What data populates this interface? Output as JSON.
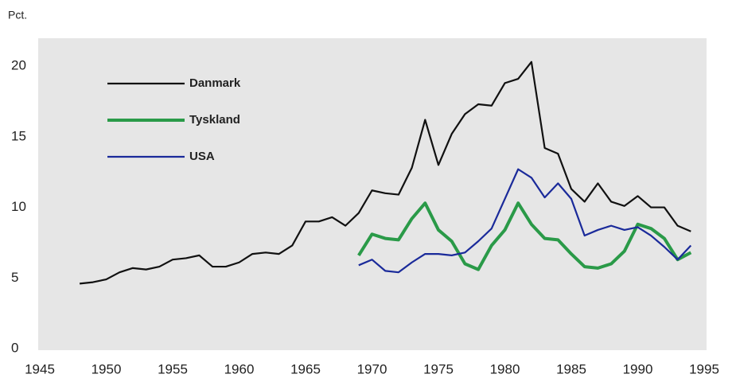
{
  "chart_data": {
    "type": "line",
    "y_label": "Pct.",
    "x": [
      1948,
      1949,
      1950,
      1951,
      1952,
      1953,
      1954,
      1955,
      1956,
      1957,
      1958,
      1959,
      1960,
      1961,
      1962,
      1963,
      1964,
      1965,
      1966,
      1967,
      1968,
      1969,
      1970,
      1971,
      1972,
      1973,
      1974,
      1975,
      1976,
      1977,
      1978,
      1979,
      1980,
      1981,
      1982,
      1983,
      1984,
      1985,
      1986,
      1987,
      1988,
      1989,
      1990,
      1991,
      1992,
      1993,
      1994
    ],
    "series": [
      {
        "name": "Danmark",
        "color": "#111111",
        "width": 2.2,
        "values": [
          4.6,
          4.7,
          4.9,
          5.4,
          5.7,
          5.6,
          5.8,
          6.3,
          6.4,
          6.6,
          5.8,
          5.8,
          6.1,
          6.7,
          6.8,
          6.7,
          7.3,
          9.0,
          9.0,
          9.3,
          8.7,
          9.6,
          11.2,
          11.0,
          10.9,
          12.8,
          16.2,
          13.0,
          15.2,
          16.6,
          17.3,
          17.2,
          18.8,
          19.1,
          20.3,
          14.2,
          13.8,
          11.3,
          10.4,
          11.7,
          10.4,
          10.1,
          10.8,
          10.0,
          10.0,
          8.7,
          8.3
        ]
      },
      {
        "name": "Tyskland",
        "color": "#2a9a48",
        "width": 4,
        "values": [
          null,
          null,
          null,
          null,
          null,
          null,
          null,
          null,
          null,
          null,
          null,
          null,
          null,
          null,
          null,
          null,
          null,
          null,
          null,
          null,
          null,
          6.6,
          8.1,
          7.8,
          7.7,
          9.2,
          10.3,
          8.4,
          7.6,
          6.0,
          5.6,
          7.3,
          8.4,
          10.3,
          8.8,
          7.8,
          7.7,
          6.7,
          5.8,
          5.7,
          6.0,
          6.9,
          8.8,
          8.5,
          7.8,
          6.3,
          6.8
        ]
      },
      {
        "name": "USA",
        "color": "#1a2a9a",
        "width": 2.2,
        "values": [
          null,
          null,
          null,
          null,
          null,
          null,
          null,
          null,
          null,
          null,
          null,
          null,
          null,
          null,
          null,
          null,
          null,
          null,
          null,
          null,
          null,
          5.9,
          6.3,
          5.5,
          5.4,
          6.1,
          6.7,
          6.7,
          6.6,
          6.8,
          7.6,
          8.5,
          10.6,
          12.7,
          12.1,
          10.7,
          11.7,
          10.6,
          8.0,
          8.4,
          8.7,
          8.4,
          8.6,
          8.0,
          7.2,
          6.3,
          7.3
        ]
      }
    ],
    "xlim": [
      1945,
      1995
    ],
    "xticks": [
      1945,
      1950,
      1955,
      1960,
      1965,
      1970,
      1975,
      1980,
      1985,
      1990,
      1995
    ],
    "ylim": [
      0,
      22
    ],
    "yticks": [
      0,
      5,
      10,
      15,
      20
    ],
    "legend": "upper left"
  }
}
